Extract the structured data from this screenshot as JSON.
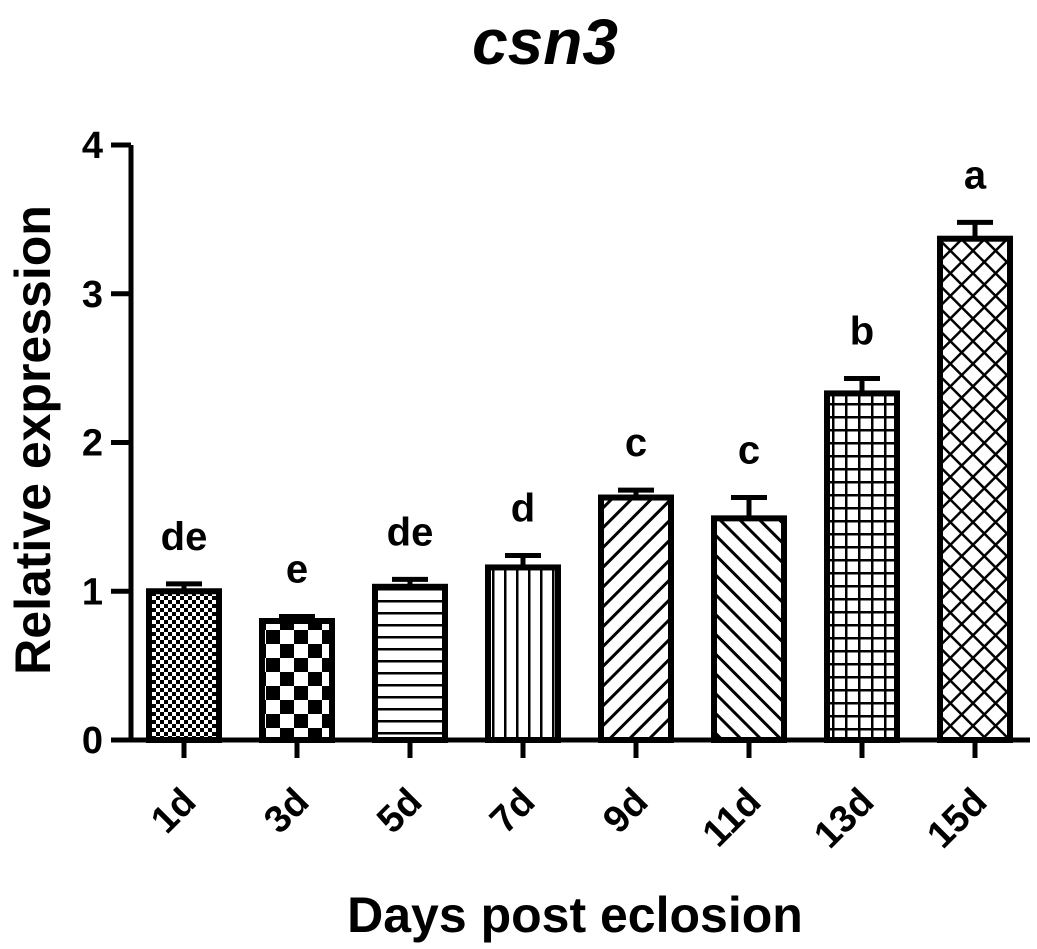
{
  "chart_data": {
    "type": "bar",
    "title": "csn3",
    "xlabel": "Days post eclosion",
    "ylabel": "Relative expression",
    "ylim": [
      0,
      4
    ],
    "yticks": [
      0,
      1,
      2,
      3,
      4
    ],
    "categories": [
      "1d",
      "3d",
      "5d",
      "7d",
      "9d",
      "11d",
      "13d",
      "15d"
    ],
    "values": [
      1.0,
      0.8,
      1.03,
      1.16,
      1.63,
      1.49,
      2.33,
      3.37
    ],
    "errors": [
      0.05,
      0.03,
      0.05,
      0.08,
      0.05,
      0.14,
      0.1,
      0.11
    ],
    "significance": [
      "de",
      "e",
      "de",
      "d",
      "c",
      "c",
      "b",
      "a"
    ],
    "patterns": [
      "dots",
      "checker",
      "horizontal",
      "vertical",
      "diagonal-up",
      "diagonal-down",
      "grid",
      "crosshatch"
    ],
    "grid": false,
    "bar_color": "#000000"
  }
}
